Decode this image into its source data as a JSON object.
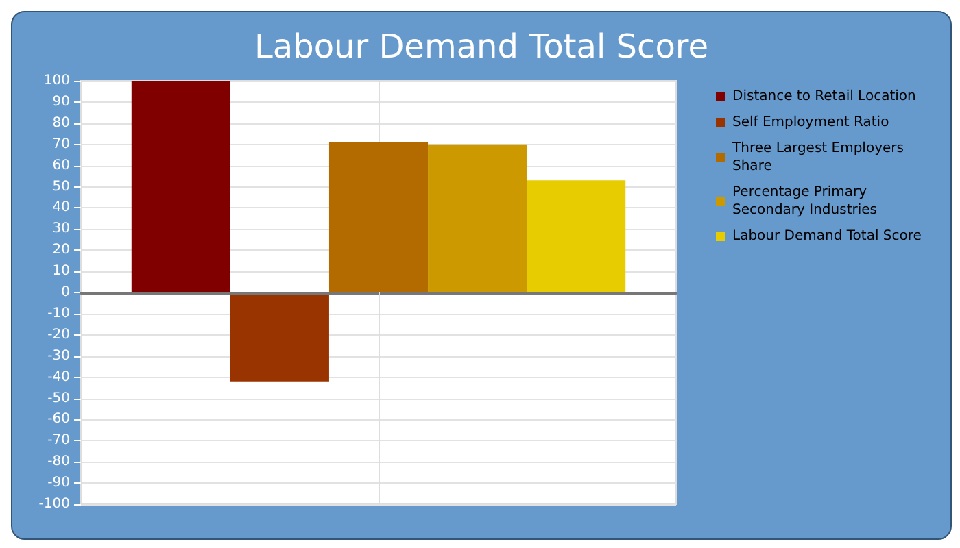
{
  "chart_data": {
    "type": "bar",
    "title": "Labour Demand Total Score",
    "categories": [
      null
    ],
    "series": [
      {
        "name": "Distance to Retail Location",
        "color": "#800000",
        "values": [
          100
        ]
      },
      {
        "name": "Self Employment Ratio",
        "color": "#993300",
        "values": [
          -42
        ]
      },
      {
        "name": "Three Largest Employers Share",
        "color": "#b36b00",
        "values": [
          71
        ]
      },
      {
        "name": "Percentage Primary Secondary Industries",
        "color": "#cc9900",
        "values": [
          70
        ]
      },
      {
        "name": "Labour Demand Total Score",
        "color": "#e6cc00",
        "values": [
          53
        ]
      }
    ],
    "ylim": [
      -100,
      100
    ],
    "yticks": [
      -100,
      -90,
      -80,
      -70,
      -60,
      -50,
      -40,
      -30,
      -20,
      -10,
      0,
      10,
      20,
      30,
      40,
      50,
      60,
      70,
      80,
      90,
      100
    ],
    "grid": true,
    "legend": "right"
  }
}
